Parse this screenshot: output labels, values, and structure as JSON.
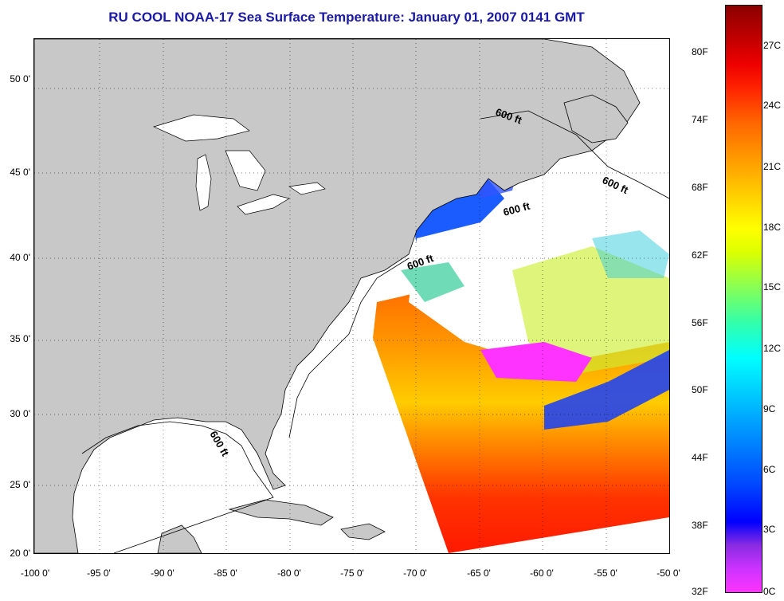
{
  "title": "RU COOL  NOAA-17  Sea Surface Temperature:  January 01, 2007 0141 GMT",
  "lat_labels": [
    "50 0'",
    "45 0'",
    "40 0'",
    "35 0'",
    "30 0'",
    "25 0'",
    "20 0'"
  ],
  "lon_labels": [
    "-100 0'",
    "-95 0'",
    "-90 0'",
    "-85 0'",
    "-80 0'",
    "-75 0'",
    "-70 0'",
    "-65 0'",
    "-60 0'",
    "-55 0'",
    "-50 0'"
  ],
  "contour_labels": [
    "600 ft",
    "600 ft",
    "600 ft",
    "600 ft",
    "600 ft"
  ],
  "colorbar": {
    "fahrenheit": [
      "80F",
      "74F",
      "68F",
      "62F",
      "56F",
      "50F",
      "44F",
      "38F",
      "32F"
    ],
    "celsius": [
      "27C",
      "24C",
      "21C",
      "18C",
      "15C",
      "12C",
      "9C",
      "6C",
      "3C",
      "0C"
    ]
  },
  "colors": {
    "land": "#c8c8c8",
    "title": "#1a1aa6",
    "cloud_mask": "#ffffff"
  }
}
